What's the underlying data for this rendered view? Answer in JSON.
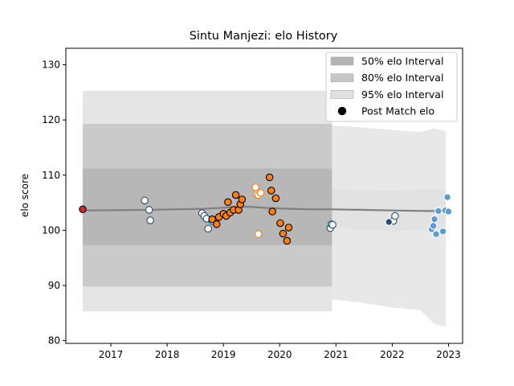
{
  "chart_data": {
    "type": "scatter",
    "title": "Sintu Manjezi: elo History",
    "xlabel": "",
    "ylabel": "elo score",
    "xlim": [
      2016.2,
      2023.25
    ],
    "ylim": [
      79.5,
      133.0
    ],
    "x_ticks": [
      2017,
      2018,
      2019,
      2020,
      2021,
      2022,
      2023
    ],
    "x_tick_labels": [
      "2017",
      "2018",
      "2019",
      "2020",
      "2021",
      "2022",
      "2023"
    ],
    "y_ticks": [
      80,
      90,
      100,
      110,
      120,
      130
    ],
    "y_tick_labels": [
      "80",
      "90",
      "100",
      "110",
      "120",
      "130"
    ],
    "grid": false,
    "legend": {
      "placement": "top-right",
      "entries": [
        {
          "label": "50% elo Interval",
          "kind": "band",
          "color": "#b0b0b0"
        },
        {
          "label": "80% elo Interval",
          "kind": "band",
          "color": "#c8c8c8"
        },
        {
          "label": "95% elo Interval",
          "kind": "band",
          "color": "#e2e2e2"
        },
        {
          "label": "Post Match elo",
          "kind": "marker",
          "color": "#000000"
        }
      ]
    },
    "colors": {
      "band_50": "#b4b4b4",
      "band_80": "#c6c6c6",
      "band_95": "#e0e0e0",
      "mean_line": "#808080",
      "red": "#d62728",
      "orange": "#ff7f0e",
      "dark_blue": "#1f4e79",
      "light_blue": "#5b9bd5",
      "edge_dark": "#000000",
      "edge_white": "#ffffff"
    },
    "bands_early": {
      "x_start": 2016.5,
      "x_end": 2020.93,
      "mean": 103.5,
      "band_50": [
        97.3,
        111.2
      ],
      "band_80": [
        89.8,
        119.3
      ],
      "band_95": [
        85.3,
        125.3
      ]
    },
    "bands_late": {
      "x": [
        2020.93,
        2021.5,
        2022.0,
        2022.5,
        2022.75,
        2022.95
      ],
      "upper_95": [
        119.0,
        118.6,
        118.2,
        117.8,
        118.5,
        118.0
      ],
      "lower_95": [
        87.5,
        86.8,
        86.0,
        85.5,
        83.0,
        82.5
      ],
      "upper_50": [
        107.5,
        107.3,
        107.2,
        107.4,
        107.6,
        107.2
      ],
      "lower_50": [
        100.4,
        100.0,
        99.8,
        100.0,
        100.2,
        100.0
      ]
    },
    "mean_line": [
      {
        "x": 2016.5,
        "y": 103.6
      },
      {
        "x": 2017.6,
        "y": 103.7
      },
      {
        "x": 2018.65,
        "y": 103.9
      },
      {
        "x": 2019.4,
        "y": 104.3
      },
      {
        "x": 2019.85,
        "y": 104.0
      },
      {
        "x": 2020.5,
        "y": 103.8
      },
      {
        "x": 2020.93,
        "y": 103.8
      },
      {
        "x": 2021.5,
        "y": 103.7
      },
      {
        "x": 2022.0,
        "y": 103.6
      },
      {
        "x": 2022.6,
        "y": 103.5
      },
      {
        "x": 2023.0,
        "y": 103.5
      }
    ],
    "series": [
      {
        "color": "red",
        "edge": "edge_dark",
        "points": [
          {
            "x": 2016.5,
            "y": 103.8
          }
        ]
      },
      {
        "color": "edge_white",
        "edge": "dark_blue",
        "points": [
          {
            "x": 2017.6,
            "y": 105.4
          },
          {
            "x": 2017.68,
            "y": 103.7
          },
          {
            "x": 2017.7,
            "y": 101.8
          },
          {
            "x": 2018.62,
            "y": 103.1
          },
          {
            "x": 2018.66,
            "y": 102.6
          },
          {
            "x": 2018.7,
            "y": 102.1
          },
          {
            "x": 2018.73,
            "y": 100.3
          },
          {
            "x": 2018.8,
            "y": 101.7
          },
          {
            "x": 2020.9,
            "y": 100.4
          },
          {
            "x": 2020.92,
            "y": 101.1
          },
          {
            "x": 2020.94,
            "y": 101.0
          },
          {
            "x": 2022.02,
            "y": 101.7
          },
          {
            "x": 2022.05,
            "y": 102.6
          }
        ]
      },
      {
        "color": "orange",
        "edge": "edge_dark",
        "points": [
          {
            "x": 2018.8,
            "y": 102.0
          },
          {
            "x": 2018.88,
            "y": 101.1
          },
          {
            "x": 2018.92,
            "y": 102.4
          },
          {
            "x": 2019.0,
            "y": 103.0
          },
          {
            "x": 2019.05,
            "y": 102.6
          },
          {
            "x": 2019.08,
            "y": 105.1
          },
          {
            "x": 2019.12,
            "y": 103.2
          },
          {
            "x": 2019.18,
            "y": 103.7
          },
          {
            "x": 2019.22,
            "y": 106.4
          },
          {
            "x": 2019.27,
            "y": 103.7
          },
          {
            "x": 2019.3,
            "y": 104.7
          },
          {
            "x": 2019.33,
            "y": 105.6
          },
          {
            "x": 2019.82,
            "y": 109.6
          },
          {
            "x": 2019.85,
            "y": 107.2
          },
          {
            "x": 2019.87,
            "y": 103.4
          },
          {
            "x": 2019.93,
            "y": 105.8
          },
          {
            "x": 2020.01,
            "y": 101.3
          },
          {
            "x": 2020.06,
            "y": 99.4
          },
          {
            "x": 2020.13,
            "y": 98.1
          },
          {
            "x": 2020.16,
            "y": 100.5
          }
        ]
      },
      {
        "color": "edge_white",
        "edge": "orange",
        "points": [
          {
            "x": 2019.57,
            "y": 107.8
          },
          {
            "x": 2019.59,
            "y": 106.6
          },
          {
            "x": 2019.62,
            "y": 106.4
          },
          {
            "x": 2019.66,
            "y": 106.8
          },
          {
            "x": 2019.62,
            "y": 99.3
          }
        ]
      },
      {
        "color": "dark_blue",
        "edge": "edge_white",
        "points": [
          {
            "x": 2021.94,
            "y": 101.5
          }
        ]
      },
      {
        "color": "light_blue",
        "edge": "edge_white",
        "points": [
          {
            "x": 2022.7,
            "y": 100.2
          },
          {
            "x": 2022.73,
            "y": 100.8
          },
          {
            "x": 2022.75,
            "y": 102.0
          },
          {
            "x": 2022.78,
            "y": 99.3
          },
          {
            "x": 2022.82,
            "y": 103.5
          },
          {
            "x": 2022.9,
            "y": 99.8
          },
          {
            "x": 2022.94,
            "y": 103.6
          },
          {
            "x": 2022.98,
            "y": 106.0
          },
          {
            "x": 2023.0,
            "y": 103.4
          }
        ]
      }
    ]
  }
}
